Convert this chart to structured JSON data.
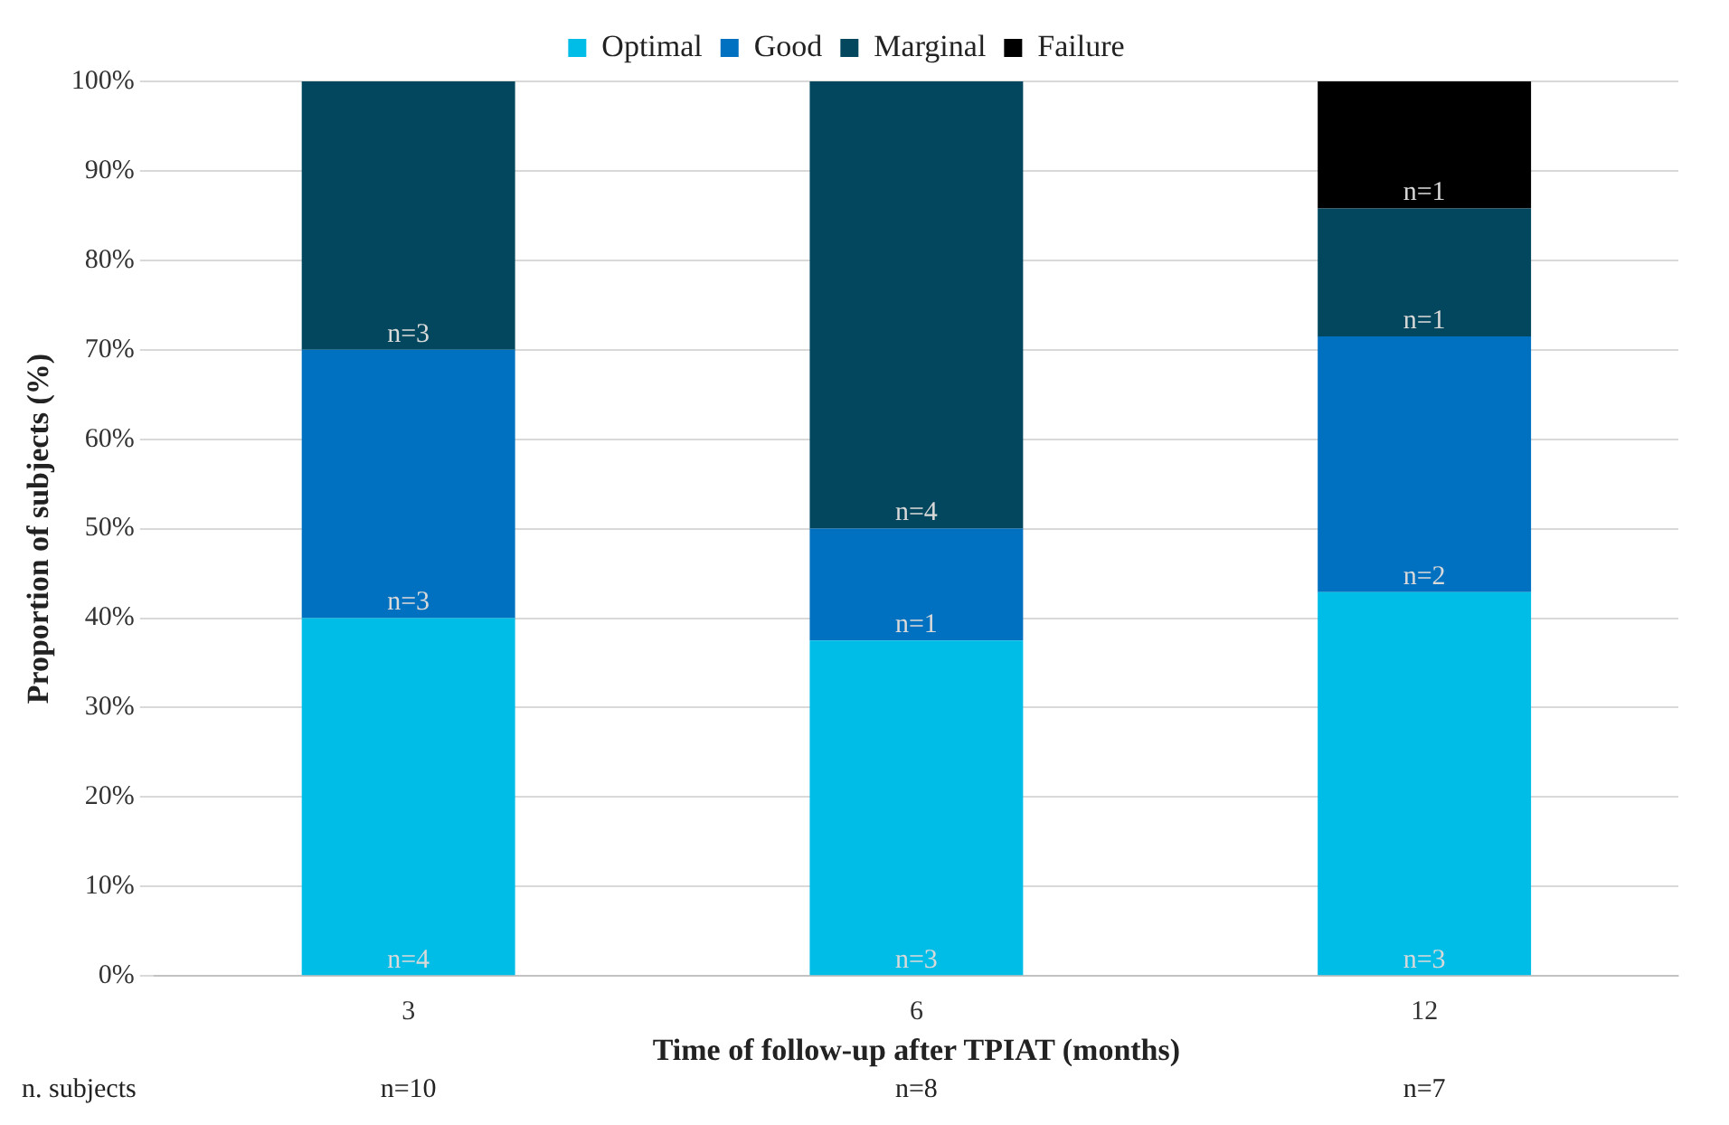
{
  "chart_data": {
    "type": "bar",
    "stacked": true,
    "xlabel": "Time of follow-up after TPIAT (months)",
    "ylabel": "Proportion of subjects (%)",
    "categories": [
      "3",
      "6",
      "12"
    ],
    "series": [
      {
        "name": "Optimal",
        "color": "#00bde8",
        "values": [
          40,
          37.5,
          42.9
        ]
      },
      {
        "name": "Good",
        "color": "#0070c0",
        "values": [
          30,
          12.5,
          28.6
        ]
      },
      {
        "name": "Marginal",
        "color": "#02475e",
        "values": [
          30,
          50,
          14.3
        ]
      },
      {
        "name": "Failure",
        "color": "#000000",
        "values": [
          0,
          0,
          14.2
        ]
      }
    ],
    "ylim": [
      0,
      100
    ],
    "yticks": [
      {
        "value": 0,
        "label": "0%"
      },
      {
        "value": 10,
        "label": "10%"
      },
      {
        "value": 20,
        "label": "20%"
      },
      {
        "value": 30,
        "label": "30%"
      },
      {
        "value": 40,
        "label": "40%"
      },
      {
        "value": 50,
        "label": "50%"
      },
      {
        "value": 60,
        "label": "60%"
      },
      {
        "value": 70,
        "label": "70%"
      },
      {
        "value": 80,
        "label": "80%"
      },
      {
        "value": 90,
        "label": "90%"
      },
      {
        "value": 100,
        "label": "100%"
      }
    ],
    "annotations": [
      {
        "text": "n=4",
        "x": "3",
        "y": 0
      },
      {
        "text": "n=3",
        "x": "3",
        "y": 40
      },
      {
        "text": "n=3",
        "x": "3",
        "y": 70
      },
      {
        "text": "n=3",
        "x": "6",
        "y": 0
      },
      {
        "text": "n=1",
        "x": "6",
        "y": 37.5
      },
      {
        "text": "n=4",
        "x": "6",
        "y": 50
      },
      {
        "text": "n=3",
        "x": "12",
        "y": 0
      },
      {
        "text": "n=2",
        "x": "12",
        "y": 42.9
      },
      {
        "text": "n=1",
        "x": "12",
        "y": 71.5
      },
      {
        "text": "n=1",
        "x": "12",
        "y": 85.8
      },
      "n. subjects",
      "n=10",
      "n=8",
      "n=7"
    ],
    "grid": "y",
    "legend": "top"
  }
}
